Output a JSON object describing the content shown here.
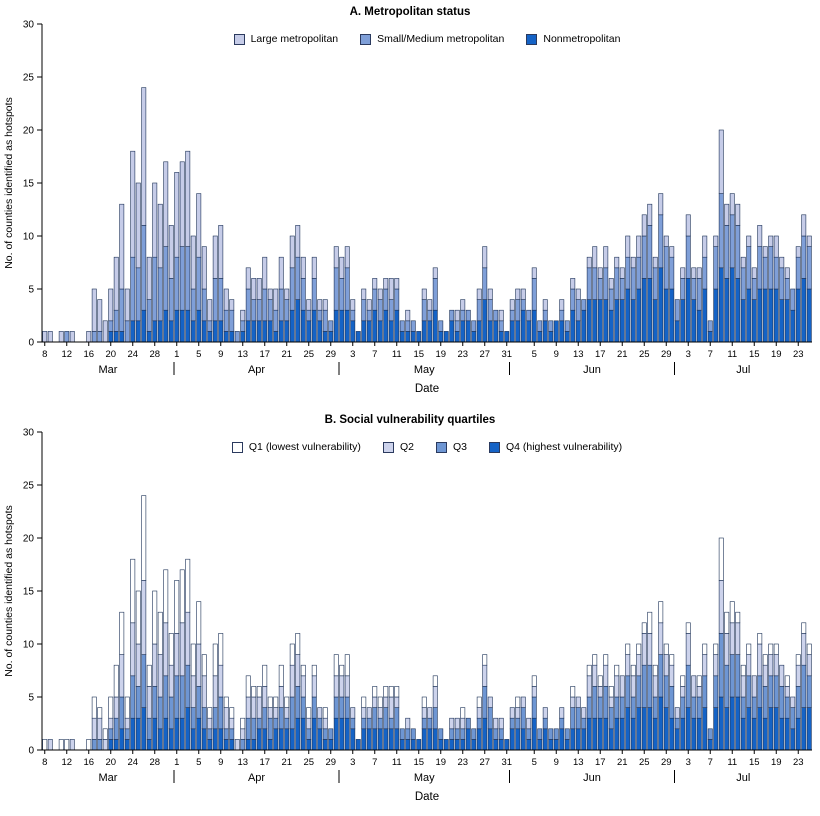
{
  "chart_data": [
    {
      "type": "bar",
      "stacked": true,
      "title": "A. Metropolitan status",
      "xlabel": "Date",
      "ylabel": "No. of counties identified as hotspots",
      "ylim": [
        0,
        30
      ],
      "yticks": [
        0,
        5,
        10,
        15,
        20,
        25,
        30
      ],
      "grid": false,
      "legend_position": "top-center-inside",
      "outline": "#1d3257",
      "months": [
        {
          "label": "Mar",
          "start": 0,
          "end": 23
        },
        {
          "label": "Apr",
          "start": 24,
          "end": 53
        },
        {
          "label": "May",
          "start": 54,
          "end": 84
        },
        {
          "label": "Jun",
          "start": 85,
          "end": 114
        },
        {
          "label": "Jul",
          "start": 115,
          "end": 139
        }
      ],
      "xtick_idx": [
        0,
        4,
        8,
        12,
        16,
        20,
        24,
        28,
        32,
        36,
        40,
        44,
        48,
        52,
        56,
        60,
        64,
        68,
        72,
        76,
        80,
        84,
        89,
        93,
        97,
        101,
        105,
        109,
        113,
        117,
        121,
        125,
        129,
        133,
        137
      ],
      "xtick_labels": [
        "8",
        "12",
        "16",
        "20",
        "24",
        "28",
        "1",
        "5",
        "9",
        "13",
        "17",
        "21",
        "25",
        "29",
        "3",
        "7",
        "11",
        "15",
        "19",
        "23",
        "27",
        "31",
        "5",
        "9",
        "13",
        "17",
        "21",
        "25",
        "29",
        "3",
        "7",
        "11",
        "15",
        "19",
        "23"
      ],
      "stack_bottom_to_top": [
        "Nonmetropolitan",
        "Small/Medium metropolitan",
        "Large metropolitan"
      ],
      "series": [
        {
          "name": "Large metropolitan",
          "color": "#c6cce8",
          "values": [
            1,
            1,
            0,
            1,
            0,
            1,
            0,
            0,
            1,
            4,
            3,
            2,
            3,
            5,
            8,
            3,
            10,
            8,
            13,
            4,
            7,
            6,
            8,
            5,
            8,
            8,
            9,
            5,
            6,
            4,
            2,
            4,
            5,
            2,
            1,
            0,
            1,
            2,
            2,
            2,
            3,
            1,
            2,
            3,
            1,
            3,
            3,
            2,
            1,
            2,
            1,
            1,
            0,
            2,
            2,
            2,
            1,
            0,
            1,
            1,
            1,
            1,
            1,
            2,
            1,
            0,
            1,
            0,
            0,
            1,
            1,
            1,
            0,
            0,
            0,
            1,
            1,
            0,
            0,
            1,
            2,
            1,
            0,
            1,
            0,
            1,
            1,
            1,
            0,
            1,
            0,
            1,
            0,
            0,
            1,
            0,
            1,
            1,
            0,
            1,
            2,
            1,
            2,
            1,
            1,
            1,
            2,
            1,
            2,
            2,
            2,
            1,
            2,
            1,
            1,
            0,
            1,
            2,
            1,
            1,
            2,
            0,
            1,
            6,
            2,
            2,
            2,
            1,
            1,
            1,
            2,
            1,
            1,
            2,
            1,
            1,
            0,
            1,
            2,
            1
          ]
        },
        {
          "name": "Small/Medium metropolitan",
          "color": "#7f9fd8",
          "values": [
            0,
            0,
            0,
            0,
            1,
            0,
            0,
            0,
            0,
            1,
            1,
            0,
            1,
            2,
            4,
            2,
            6,
            5,
            8,
            3,
            6,
            5,
            6,
            4,
            5,
            6,
            6,
            3,
            5,
            3,
            1,
            4,
            4,
            2,
            2,
            1,
            1,
            3,
            2,
            2,
            3,
            2,
            2,
            3,
            2,
            4,
            4,
            3,
            1,
            3,
            1,
            2,
            1,
            4,
            3,
            4,
            1,
            0,
            2,
            1,
            2,
            2,
            2,
            2,
            2,
            1,
            1,
            1,
            0,
            2,
            1,
            3,
            1,
            0,
            1,
            1,
            1,
            1,
            1,
            2,
            3,
            2,
            1,
            1,
            0,
            1,
            2,
            1,
            1,
            3,
            1,
            1,
            1,
            0,
            1,
            1,
            2,
            2,
            1,
            3,
            3,
            2,
            3,
            2,
            3,
            2,
            3,
            3,
            3,
            4,
            5,
            3,
            5,
            4,
            3,
            2,
            2,
            4,
            2,
            3,
            3,
            1,
            4,
            7,
            5,
            5,
            5,
            3,
            4,
            2,
            4,
            3,
            4,
            3,
            3,
            2,
            2,
            3,
            4,
            4
          ]
        },
        {
          "name": "Nonmetropolitan",
          "color": "#1563c6",
          "values": [
            0,
            0,
            0,
            0,
            0,
            0,
            0,
            0,
            0,
            0,
            0,
            0,
            1,
            1,
            1,
            0,
            2,
            2,
            3,
            1,
            2,
            2,
            3,
            2,
            3,
            3,
            3,
            2,
            3,
            2,
            1,
            2,
            2,
            1,
            1,
            0,
            1,
            2,
            2,
            2,
            2,
            2,
            1,
            2,
            2,
            3,
            4,
            3,
            2,
            3,
            2,
            1,
            1,
            3,
            3,
            3,
            2,
            1,
            2,
            2,
            3,
            2,
            3,
            2,
            3,
            1,
            1,
            1,
            1,
            2,
            2,
            3,
            1,
            1,
            2,
            1,
            2,
            2,
            1,
            2,
            4,
            2,
            2,
            1,
            1,
            2,
            2,
            3,
            2,
            3,
            1,
            2,
            1,
            2,
            2,
            1,
            3,
            2,
            3,
            4,
            4,
            4,
            4,
            3,
            4,
            4,
            5,
            4,
            5,
            6,
            6,
            4,
            7,
            5,
            5,
            2,
            4,
            6,
            4,
            3,
            5,
            1,
            5,
            7,
            6,
            7,
            6,
            4,
            5,
            4,
            5,
            5,
            5,
            5,
            4,
            4,
            3,
            5,
            6,
            5
          ]
        }
      ]
    },
    {
      "type": "bar",
      "stacked": true,
      "title": "B. Social vulnerability quartiles",
      "xlabel": "Date",
      "ylabel": "No. of counties identified as hotspots",
      "ylim": [
        0,
        30
      ],
      "yticks": [
        0,
        5,
        10,
        15,
        20,
        25,
        30
      ],
      "grid": false,
      "legend_position": "top-center-inside",
      "outline": "#1d3257",
      "months": [
        {
          "label": "Mar",
          "start": 0,
          "end": 23
        },
        {
          "label": "Apr",
          "start": 24,
          "end": 53
        },
        {
          "label": "May",
          "start": 54,
          "end": 84
        },
        {
          "label": "Jun",
          "start": 85,
          "end": 114
        },
        {
          "label": "Jul",
          "start": 115,
          "end": 139
        }
      ],
      "xtick_idx": [
        0,
        4,
        8,
        12,
        16,
        20,
        24,
        28,
        32,
        36,
        40,
        44,
        48,
        52,
        56,
        60,
        64,
        68,
        72,
        76,
        80,
        84,
        89,
        93,
        97,
        101,
        105,
        109,
        113,
        117,
        121,
        125,
        129,
        133,
        137
      ],
      "xtick_labels": [
        "8",
        "12",
        "16",
        "20",
        "24",
        "28",
        "1",
        "5",
        "9",
        "13",
        "17",
        "21",
        "25",
        "29",
        "3",
        "7",
        "11",
        "15",
        "19",
        "23",
        "27",
        "31",
        "5",
        "9",
        "13",
        "17",
        "21",
        "25",
        "29",
        "3",
        "7",
        "11",
        "15",
        "19",
        "23"
      ],
      "stack_bottom_to_top": [
        "Q4 (highest vulnerability)",
        "Q3",
        "Q2",
        "Q1 (lowest vulnerability)"
      ],
      "series": [
        {
          "name": "Q1 (lowest vulnerability)",
          "color": "#ffffff",
          "values": [
            1,
            0,
            0,
            1,
            1,
            0,
            0,
            0,
            1,
            2,
            1,
            1,
            2,
            3,
            4,
            2,
            6,
            5,
            8,
            2,
            5,
            4,
            5,
            3,
            5,
            5,
            5,
            3,
            4,
            2,
            1,
            3,
            3,
            1,
            1,
            0,
            1,
            2,
            1,
            1,
            2,
            1,
            1,
            2,
            1,
            2,
            2,
            1,
            1,
            1,
            0,
            1,
            0,
            2,
            1,
            2,
            0,
            0,
            1,
            0,
            1,
            1,
            1,
            1,
            1,
            0,
            0,
            0,
            0,
            1,
            0,
            1,
            0,
            0,
            0,
            0,
            1,
            0,
            0,
            1,
            1,
            0,
            0,
            0,
            0,
            0,
            1,
            0,
            0,
            1,
            0,
            0,
            0,
            0,
            0,
            0,
            1,
            0,
            0,
            1,
            1,
            1,
            1,
            1,
            1,
            0,
            1,
            1,
            1,
            1,
            2,
            1,
            2,
            1,
            1,
            0,
            1,
            1,
            0,
            1,
            1,
            0,
            1,
            4,
            2,
            2,
            1,
            1,
            1,
            0,
            1,
            1,
            1,
            1,
            0,
            1,
            0,
            1,
            1,
            1
          ]
        },
        {
          "name": "Q2",
          "color": "#cdd3ec",
          "values": [
            0,
            1,
            0,
            0,
            0,
            1,
            0,
            0,
            0,
            2,
            2,
            1,
            1,
            2,
            4,
            1,
            5,
            4,
            7,
            3,
            4,
            4,
            5,
            3,
            4,
            5,
            5,
            3,
            4,
            3,
            1,
            3,
            3,
            2,
            1,
            1,
            1,
            2,
            2,
            2,
            2,
            1,
            1,
            2,
            1,
            3,
            3,
            2,
            1,
            2,
            1,
            1,
            0,
            2,
            2,
            2,
            1,
            0,
            1,
            1,
            1,
            1,
            1,
            2,
            1,
            0,
            1,
            0,
            0,
            1,
            1,
            2,
            0,
            0,
            1,
            1,
            1,
            0,
            0,
            1,
            2,
            1,
            1,
            1,
            0,
            1,
            1,
            1,
            1,
            1,
            0,
            1,
            0,
            0,
            1,
            0,
            1,
            1,
            1,
            2,
            2,
            1,
            2,
            1,
            2,
            2,
            2,
            2,
            2,
            3,
            3,
            2,
            3,
            2,
            2,
            1,
            1,
            3,
            2,
            1,
            2,
            0,
            2,
            5,
            3,
            3,
            3,
            2,
            2,
            2,
            3,
            2,
            2,
            2,
            2,
            1,
            1,
            2,
            3,
            2
          ]
        },
        {
          "name": "Q3",
          "color": "#6e96d3",
          "values": [
            0,
            0,
            0,
            0,
            0,
            0,
            0,
            0,
            0,
            1,
            1,
            0,
            1,
            2,
            3,
            1,
            4,
            3,
            5,
            2,
            3,
            3,
            4,
            3,
            4,
            4,
            4,
            2,
            3,
            2,
            1,
            2,
            3,
            1,
            1,
            0,
            1,
            2,
            2,
            1,
            2,
            2,
            1,
            2,
            1,
            3,
            3,
            2,
            1,
            2,
            1,
            1,
            1,
            2,
            2,
            2,
            1,
            0,
            1,
            1,
            2,
            1,
            2,
            1,
            2,
            1,
            1,
            1,
            0,
            1,
            1,
            2,
            1,
            0,
            1,
            1,
            1,
            1,
            1,
            1,
            3,
            2,
            1,
            1,
            0,
            1,
            1,
            2,
            1,
            2,
            1,
            1,
            1,
            1,
            1,
            1,
            2,
            2,
            1,
            2,
            3,
            2,
            3,
            2,
            2,
            2,
            3,
            2,
            3,
            4,
            4,
            2,
            4,
            3,
            3,
            1,
            2,
            4,
            2,
            2,
            3,
            1,
            3,
            6,
            4,
            4,
            4,
            2,
            3,
            2,
            3,
            3,
            3,
            3,
            3,
            2,
            2,
            3,
            4,
            3
          ]
        },
        {
          "name": "Q4 (highest vulnerability)",
          "color": "#1563c6",
          "values": [
            0,
            0,
            0,
            0,
            0,
            0,
            0,
            0,
            0,
            0,
            0,
            0,
            1,
            1,
            2,
            1,
            3,
            3,
            4,
            1,
            3,
            2,
            3,
            2,
            3,
            3,
            4,
            2,
            3,
            2,
            1,
            2,
            2,
            1,
            1,
            0,
            0,
            1,
            1,
            2,
            2,
            1,
            2,
            2,
            2,
            2,
            3,
            3,
            1,
            3,
            2,
            1,
            1,
            3,
            3,
            3,
            2,
            1,
            2,
            2,
            2,
            2,
            2,
            2,
            2,
            1,
            1,
            1,
            1,
            2,
            2,
            2,
            1,
            1,
            1,
            1,
            1,
            2,
            1,
            2,
            3,
            2,
            1,
            1,
            1,
            2,
            2,
            2,
            1,
            3,
            1,
            2,
            1,
            1,
            2,
            1,
            2,
            2,
            2,
            3,
            3,
            3,
            3,
            2,
            3,
            3,
            4,
            3,
            4,
            4,
            4,
            3,
            5,
            4,
            3,
            2,
            3,
            4,
            3,
            3,
            4,
            1,
            4,
            5,
            4,
            5,
            5,
            3,
            4,
            3,
            4,
            3,
            4,
            4,
            3,
            3,
            2,
            3,
            4,
            4
          ]
        }
      ]
    }
  ]
}
